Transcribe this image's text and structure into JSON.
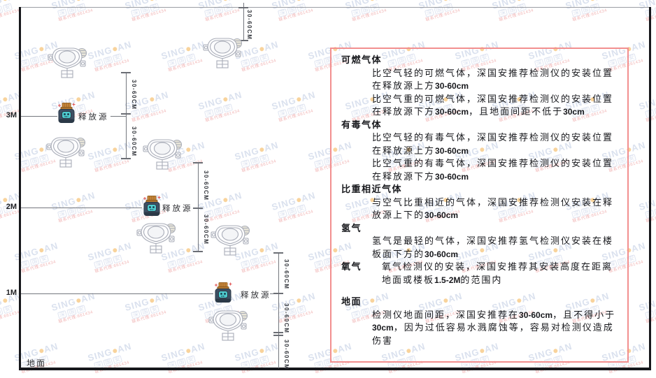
{
  "watermark": {
    "brand_left": "SING",
    "brand_right": "AN",
    "boxed_chars": [
      "深",
      "国",
      "安"
    ],
    "agent_line": "联系代理:661434"
  },
  "diagram": {
    "height_labels": [
      "3M",
      "2M",
      "1M"
    ],
    "ground_label": "地面",
    "release_source_label": "释放源",
    "dimension_label": "30-60CM"
  },
  "panel": {
    "border_color": "#f28f8f",
    "sections": [
      {
        "heading": "可燃气体",
        "paragraphs": [
          "比空气轻的可燃气体，深国安推荐检测仪的安装位置在释放源上方30-60cm",
          "比空气重的可燃气体，深国安推荐检测仪的安装位置在释放源下方30-60cm，且地面间距不低于30cm"
        ]
      },
      {
        "heading": "有毒气体",
        "paragraphs": [
          "比空气轻的有毒气体，深国安推荐检测仪的安装位置在释放源上方30-60cm",
          "比空气重的有毒气体，深国安推荐检测仪的安装位置在释放源下方30-60cm"
        ]
      },
      {
        "heading": "比重相近气体",
        "paragraphs": [
          "与空气比重相近的气体，深国安推荐检测仪安装在释放源上下的30-60cm"
        ]
      },
      {
        "heading": "氢气",
        "paragraphs": [
          "氢气是最轻的气体，深国安推荐氢气检测仪安装在楼板面下方的30-60cm"
        ]
      },
      {
        "heading": "氧气",
        "inline": true,
        "paragraphs": [
          "氧气检测仪的安装，深国安推荐其安装高度在距离地面或楼板1.5-2M的范围内"
        ]
      },
      {
        "heading": "地面",
        "extra_gap": true,
        "paragraphs": [
          "检测仪地面间距，深国安推荐在30-60cm，且不得小于30cm，因为过低容易水溅腐蚀等，容易对检测仪造成伤害"
        ]
      }
    ]
  }
}
